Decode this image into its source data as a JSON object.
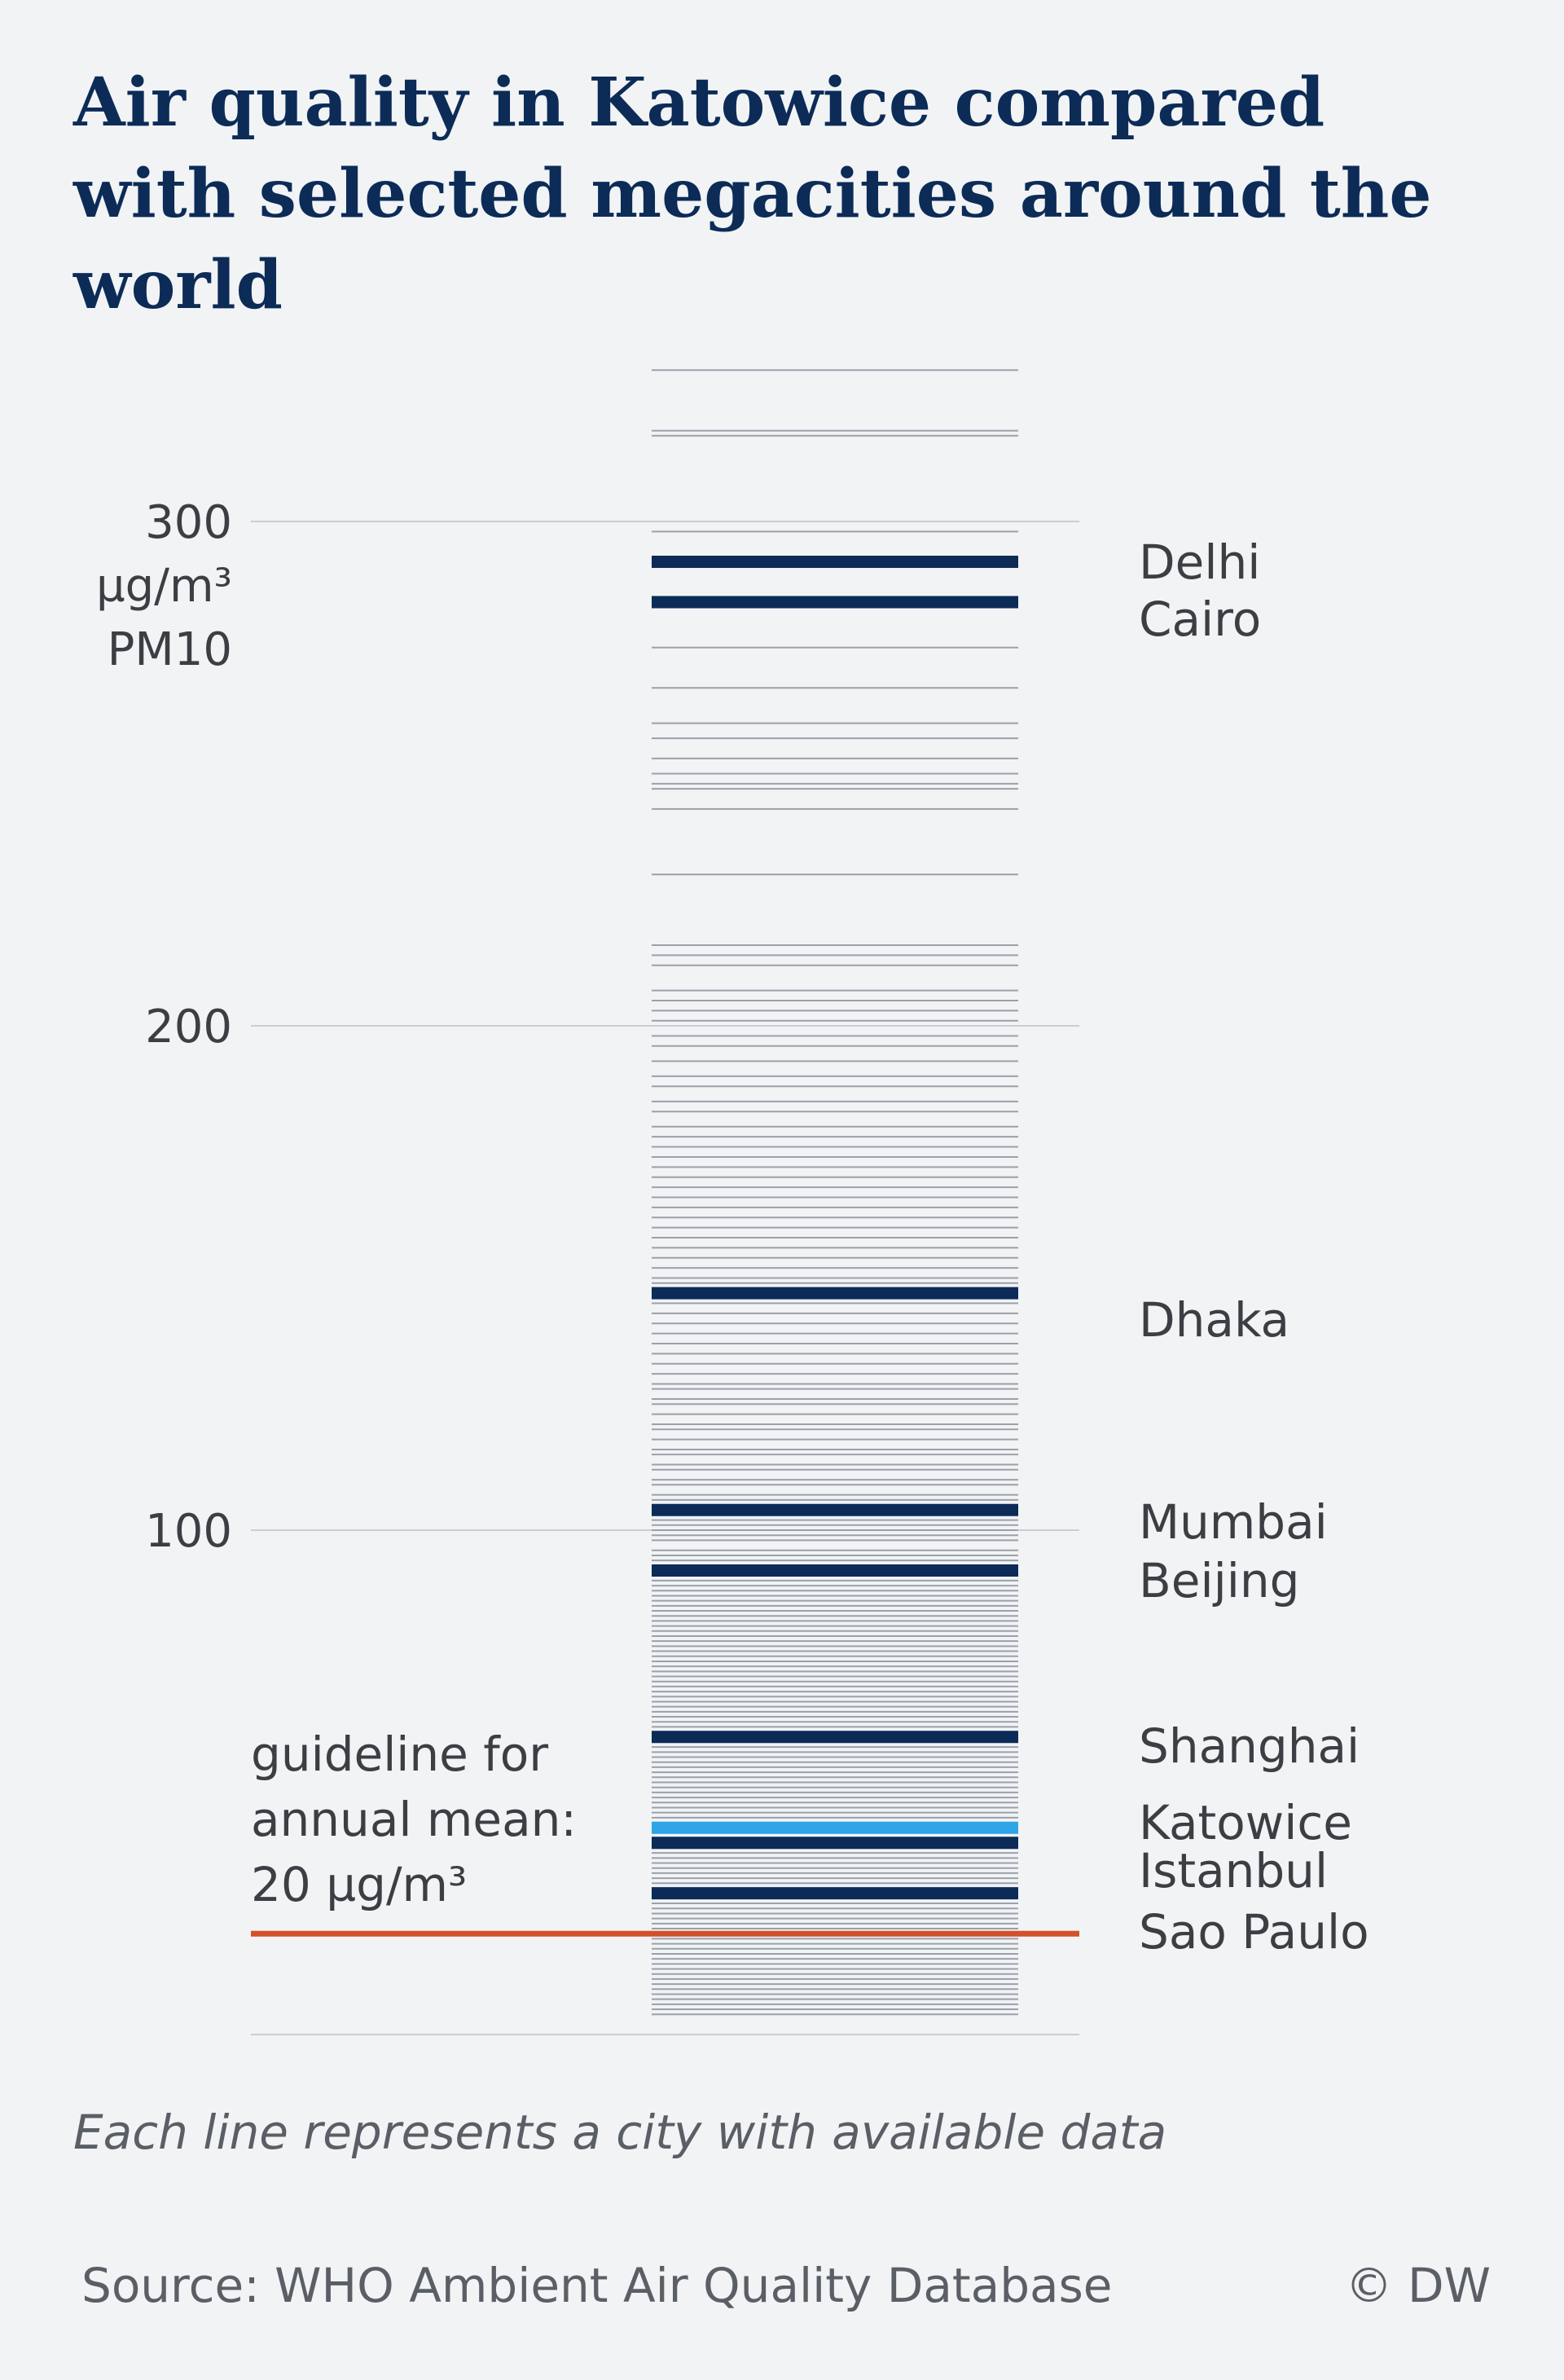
{
  "title": "Air quality in Katowice compared with selected megacities around the world",
  "note": "Each line represents a city with available data",
  "source": "Source: WHO Ambient Air Quality Database",
  "credit": "© DW",
  "chart_data": {
    "type": "strip",
    "y_unit_lines": [
      "µg/m³",
      "PM10"
    ],
    "yticks": [
      100,
      200,
      300
    ],
    "ylim": [
      0,
      330
    ],
    "grid": true,
    "guideline": {
      "value": 20,
      "label_lines": [
        "guideline for",
        "annual mean:",
        "20 µg/m³"
      ],
      "color": "#d1512b"
    },
    "highlighted": [
      {
        "name": "Delhi",
        "value": 292,
        "color": "#0c2b57"
      },
      {
        "name": "Cairo",
        "value": 284,
        "color": "#0c2b57"
      },
      {
        "name": "Dhaka",
        "value": 147,
        "color": "#0c2b57"
      },
      {
        "name": "Mumbai",
        "value": 104,
        "color": "#0c2b57"
      },
      {
        "name": "Beijing",
        "value": 92,
        "color": "#0c2b57"
      },
      {
        "name": "Shanghai",
        "value": 59,
        "color": "#0c2b57"
      },
      {
        "name": "Katowice",
        "value": 41,
        "color": "#2fa4e7"
      },
      {
        "name": "Istanbul",
        "value": 38,
        "color": "#0c2b57"
      },
      {
        "name": "Sao Paulo",
        "value": 28,
        "color": "#0c2b57"
      }
    ],
    "other_cities": [
      330,
      318,
      317,
      298,
      275,
      267,
      260,
      257,
      253,
      250,
      248,
      247,
      243,
      230,
      216,
      214,
      212,
      207,
      205,
      203,
      201,
      198,
      196,
      193,
      190,
      188,
      185,
      183,
      180,
      178,
      176,
      174,
      172,
      170,
      168,
      166,
      164,
      162,
      160,
      158,
      156,
      154,
      152,
      150,
      149,
      145,
      143,
      141,
      139,
      137,
      135,
      133,
      131,
      129,
      128,
      126,
      125,
      123,
      121,
      120,
      118,
      116,
      115,
      113,
      112,
      110,
      109,
      107,
      106,
      102,
      101,
      100,
      99,
      98,
      96,
      95,
      94,
      93,
      91,
      90,
      89,
      88,
      87,
      86,
      85,
      84,
      83,
      82,
      81,
      80,
      79,
      78,
      77,
      76,
      75,
      74,
      73,
      72,
      71,
      70,
      69,
      68,
      67,
      66,
      65,
      64,
      63,
      62,
      61,
      60,
      58,
      57,
      56,
      55,
      54,
      53,
      52,
      51,
      50,
      49,
      48,
      47,
      46,
      45,
      44,
      43,
      42,
      40,
      39,
      37,
      36,
      35,
      34,
      33,
      32,
      31,
      30,
      29,
      27,
      26,
      25,
      24,
      23,
      22,
      21,
      19,
      18,
      17,
      16,
      15,
      14,
      13,
      12,
      11,
      10,
      9,
      8,
      7,
      6,
      5,
      4
    ],
    "colors": {
      "city_line": "#9aa1aa",
      "gridline": "#c9ced4",
      "highlight": "#0c2b57",
      "katowice": "#2fa4e7",
      "guideline": "#d1512b",
      "axis_text": "#3b3f44"
    }
  }
}
